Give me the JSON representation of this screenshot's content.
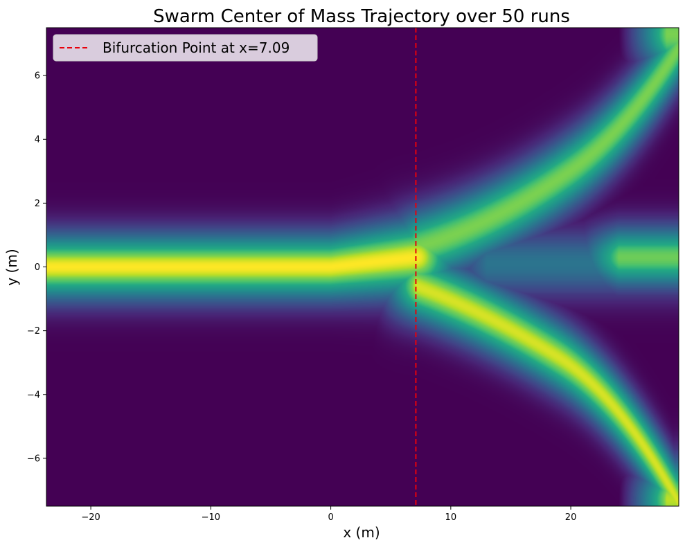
{
  "chart_data": {
    "type": "heatmap",
    "title": "Swarm Center of Mass Trajectory over 50 runs",
    "xlabel": "x (m)",
    "ylabel": "y (m)",
    "xlim": [
      -23.7,
      29.0
    ],
    "ylim": [
      -7.5,
      7.5
    ],
    "xticks": [
      -20,
      -10,
      0,
      10,
      20
    ],
    "xtick_labels": [
      "−20",
      "−10",
      "0",
      "10",
      "20"
    ],
    "yticks": [
      -6,
      -4,
      -2,
      0,
      2,
      4,
      6
    ],
    "ytick_labels": [
      "−6",
      "−4",
      "−2",
      "0",
      "2",
      "4",
      "6"
    ],
    "colormap": "viridis",
    "grid": false,
    "density_branches": [
      {
        "description": "single trunk",
        "x": [
          -23.7,
          0,
          7.09
        ],
        "y_center": [
          0,
          0,
          0.3
        ],
        "peak": 1.0
      },
      {
        "description": "upper branch",
        "x": [
          7.09,
          15,
          20,
          29
        ],
        "y_center": [
          0.8,
          1.8,
          3.0,
          7.2
        ],
        "peak": 0.9
      },
      {
        "description": "lower branch",
        "x": [
          7.09,
          15,
          20,
          29
        ],
        "y_center": [
          -0.8,
          -1.8,
          -3.0,
          -7.2
        ],
        "peak": 0.95
      },
      {
        "description": "center arm",
        "x": [
          20,
          29
        ],
        "y_center": [
          0.3,
          0.3
        ],
        "peak": 0.85
      }
    ],
    "annotations": [
      {
        "type": "vline",
        "x": 7.09,
        "color": "#e8000b",
        "style": "dashed",
        "label": "Bifurcation Point at x=7.09"
      }
    ],
    "legend": {
      "position": "top-left",
      "entries": [
        "Bifurcation Point at x=7.09"
      ]
    }
  }
}
